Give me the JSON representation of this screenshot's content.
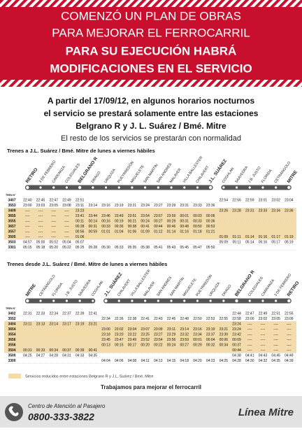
{
  "header": {
    "lines": [
      "COMENZÓ UN PLAN DE OBRAS",
      "PARA MEJORAR EL FERROCARRIL",
      "PARA SU EJECUCIÓN HABRÁ",
      "MODIFICACIONES EN EL SERVICIO"
    ]
  },
  "intro": {
    "lines": [
      "A partir del 17/09/12, en algunos horarios nocturnos",
      "el servicio se prestará solamente entre las estaciones",
      "Belgrano R y J. L. Suárez / Bmé. Mitre"
    ],
    "note": "El resto de los servicios se prestarán con normalidad"
  },
  "tables": [
    {
      "title": "Trenes a J.L. Suárez / Bmé. Mitre de lunes a viernes hábiles",
      "train_label": "TREN N°",
      "stations": [
        "RETIRO",
        "3 DE FEBRERO",
        "CARRANZA",
        "COLEGIALES",
        "BELGRANO R",
        "DRAGO",
        "URQUIZA",
        "PUEYRREDÓN",
        "MIGUELETE",
        "SAN MARTÍN",
        "SAN ANDRÉS",
        "MALAVER",
        "VILLA BALLESTER",
        "CHILAVERT",
        "J.L. SUÁREZ",
        "COGHLAN",
        "SAAVEDRA",
        "J.B. JUSTO",
        "FLORIDA",
        "CETRÁNGOLO",
        "MITRE"
      ],
      "rows": [
        [
          "3407",
          "22:40",
          "22:45",
          "22:47",
          "22:49",
          "22:51",
          null,
          null,
          null,
          null,
          null,
          null,
          null,
          null,
          null,
          null,
          "22:54",
          "22:56",
          "22:59",
          "23:01",
          "23:02",
          "23:04"
        ],
        [
          "3553",
          "23:00",
          "23:03",
          "23:05",
          "23:08",
          "23:11",
          "23:14",
          "23:16",
          "23:19",
          "23:21",
          "23:24",
          "23:27",
          "23:29",
          "23:31",
          "23:33",
          "23:36",
          null,
          null,
          null,
          null,
          null,
          null
        ],
        [
          "3409",
          "----",
          "----",
          "----",
          "----",
          "23:23",
          null,
          null,
          null,
          null,
          null,
          null,
          null,
          null,
          null,
          null,
          "23:26",
          "23:28",
          "23:31",
          "23:33",
          "23:34",
          "23:36"
        ],
        [
          "3655",
          "----",
          "----",
          "----",
          "----",
          "23:41",
          "23:44",
          "23:46",
          "23:49",
          "23:51",
          "23:54",
          "23:57",
          "23:59",
          "00:01",
          "00:03",
          "00:06",
          null,
          null,
          null,
          null,
          null,
          null
        ],
        [
          "3555",
          "----",
          "----",
          "----",
          "----",
          "00:11",
          "00:14",
          "00:16",
          "00:19",
          "00:21",
          "00:24",
          "00:27",
          "00:29",
          "00:31",
          "00:33",
          "00:36",
          null,
          null,
          null,
          null,
          null,
          null
        ],
        [
          "3657",
          "----",
          "----",
          "----",
          "----",
          "00:28",
          "00:31",
          "00:33",
          "00:36",
          "00:38",
          "00:41",
          "00:44",
          "00:46",
          "00:48",
          "00:50",
          "00:53",
          null,
          null,
          null,
          null,
          null,
          null
        ],
        [
          "3557",
          "----",
          "----",
          "----",
          "----",
          "00:56",
          "00:59",
          "01:01",
          "01:04",
          "01:06",
          "01:09",
          "01:12",
          "01:14",
          "01:16",
          "01:18",
          "01:21",
          null,
          null,
          null,
          null,
          null,
          null
        ],
        [
          "3505",
          "----",
          "----",
          "----",
          "----",
          "01:06",
          null,
          null,
          null,
          null,
          null,
          null,
          null,
          null,
          null,
          null,
          "01:09",
          "01:11",
          "01:14",
          "01:16",
          "01:17",
          "01:19"
        ],
        [
          "3503",
          "04:57",
          "05:00",
          "05:02",
          "05:04",
          "05:07",
          null,
          null,
          null,
          null,
          null,
          null,
          null,
          null,
          null,
          null,
          "05:09",
          "05:11",
          "05:14",
          "05:16",
          "05:17",
          "05:19"
        ],
        [
          "3301",
          "05:15",
          "05:18",
          "05:20",
          "05:22",
          "05:25",
          "05:28",
          "05:30",
          "05:33",
          "05:35",
          "05:38",
          "05:41",
          "05:43",
          "05:45",
          "05:47",
          "05:50",
          null,
          null,
          null,
          null,
          null,
          null
        ]
      ]
    },
    {
      "title": "Trenes desde J.L. Suárez / Bmé. Mitre de lunes a viernes hábiles",
      "train_label": "TREN N°",
      "stations": [
        "MITRE",
        "CETRÁNGOLO",
        "FLORIDA",
        "J.B. JUSTO",
        "SAAVEDRA",
        "COGHLAN",
        "J.L. SUÁREZ",
        "CHILAVERT",
        "VILLA BALLESTER",
        "MALAVER",
        "SAN ANDRÉS",
        "SAN MARTÍN",
        "MIGUELETE",
        "PUEYRREDÓN",
        "URQUIZA",
        "DRAGO",
        "BELGRANO R",
        "COLEGIALES",
        "CARRANZA",
        "3 DE FEBRERO",
        "RETIRO"
      ],
      "rows": [
        [
          "3402",
          "22:31",
          "22:33",
          "22:34",
          "22:37",
          "22:39",
          "22:41",
          null,
          null,
          null,
          null,
          null,
          null,
          null,
          null,
          null,
          null,
          "22:44",
          "22:47",
          "22:49",
          "22:51",
          "22:55"
        ],
        [
          "3552",
          null,
          null,
          null,
          null,
          null,
          null,
          "22:34",
          "22:36",
          "22:38",
          "22:41",
          "22:43",
          "22:45",
          "22:48",
          "22:50",
          "22:53",
          "22:55",
          "22:58",
          "23:00",
          "23:02",
          "23:05",
          "23:09"
        ],
        [
          "3404",
          "23:11",
          "23:13",
          "23:14",
          "23:17",
          "23:19",
          "23:21",
          null,
          null,
          null,
          null,
          null,
          null,
          null,
          null,
          null,
          null,
          "23:24",
          "----",
          "----",
          "----",
          "----"
        ],
        [
          "3654",
          null,
          null,
          null,
          null,
          null,
          null,
          "23:00",
          "23:02",
          "23:04",
          "23:07",
          "23:09",
          "23:11",
          "23:14",
          "23:16",
          "23:19",
          "23:21",
          "23:24",
          "----",
          "----",
          "----",
          "----"
        ],
        [
          "3554",
          null,
          null,
          null,
          null,
          null,
          null,
          "23:18",
          "23:20",
          "23:22",
          "23:25",
          "23:27",
          "23:29",
          "23:32",
          "23:34",
          "23:37",
          "23:39",
          "23:42",
          "----",
          "----",
          "----",
          "----"
        ],
        [
          "3656",
          null,
          null,
          null,
          null,
          null,
          null,
          "23:45",
          "23:47",
          "23:49",
          "23:52",
          "23:54",
          "23:56",
          "23:59",
          "00:01",
          "00:04",
          "00:06",
          "00:09",
          "----",
          "----",
          "----",
          "----"
        ],
        [
          "3556",
          null,
          null,
          null,
          null,
          null,
          null,
          "00:13",
          "00:15",
          "00:17",
          "00:20",
          "00:22",
          "00:24",
          "00:27",
          "00:29",
          "00:32",
          "00:34",
          "00:37",
          "----",
          "----",
          "----",
          "----"
        ],
        [
          "3504",
          "00:31",
          "00:33",
          "00:34",
          "00:37",
          "00:39",
          "00:41",
          null,
          null,
          null,
          null,
          null,
          null,
          null,
          null,
          null,
          null,
          "00:44",
          "----",
          "----",
          "----",
          "----"
        ],
        [
          "3500",
          "04:25",
          "04:27",
          "04:28",
          "04:31",
          "04:33",
          "04:35",
          null,
          null,
          null,
          null,
          null,
          null,
          null,
          null,
          null,
          null,
          "04:38",
          "04:41",
          "04:43",
          "04:45",
          "04:49"
        ],
        [
          "3300",
          null,
          null,
          null,
          null,
          null,
          null,
          "04:04",
          "04:06",
          "04:08",
          "04:11",
          "04:13",
          "04:15",
          "04:18",
          "04:20",
          "04:23",
          "04:25",
          "04:28",
          "04:30",
          "04:32",
          "04:35",
          "04:39"
        ]
      ]
    }
  ],
  "legend": "Servicios reducidos entre estaciones Belgrano R y J.L. Suárez / Bmé. Mitre",
  "tagline": "Trabajamos para mejorar el ferrocarril",
  "footer": {
    "caption": "Centro de Atención al Pasajero",
    "phone": "0800-333-3822",
    "brand": "Línea Mitre"
  }
}
